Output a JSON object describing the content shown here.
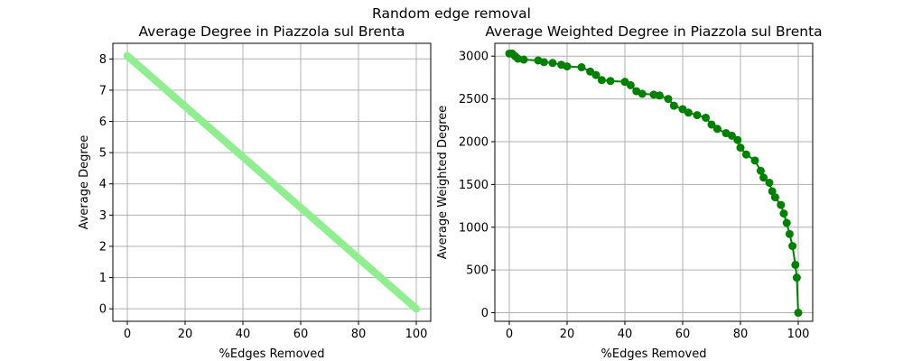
{
  "suptitle": "Random edge removal",
  "chart_data": [
    {
      "type": "scatter",
      "title": "Average Degree in Piazzola sul Brenta",
      "xlabel": "%Edges Removed",
      "ylabel": "Average Degree",
      "xlim": [
        -5,
        105
      ],
      "ylim": [
        -0.4,
        8.5
      ],
      "xticks": [
        0,
        20,
        40,
        60,
        80,
        100
      ],
      "yticks": [
        0,
        1,
        2,
        3,
        4,
        5,
        6,
        7,
        8
      ],
      "xtick_labels": [
        "0",
        "20",
        "40",
        "60",
        "80",
        "100"
      ],
      "ytick_labels": [
        "0",
        "1",
        "2",
        "3",
        "4",
        "5",
        "6",
        "7",
        "8"
      ],
      "grid": true,
      "color": "#90ee90",
      "series": [
        {
          "name": "Average Degree",
          "start": [
            0,
            8.1
          ],
          "end": [
            100,
            0.0
          ],
          "step": 0.5
        }
      ]
    },
    {
      "type": "line",
      "title": "Average Weighted Degree in Piazzola sul Brenta",
      "xlabel": "%Edges Removed",
      "ylabel": "Average Weighted Degree",
      "xlim": [
        -5,
        105
      ],
      "ylim": [
        -100,
        3150
      ],
      "xticks": [
        0,
        20,
        40,
        60,
        80,
        100
      ],
      "yticks": [
        0,
        500,
        1000,
        1500,
        2000,
        2500,
        3000
      ],
      "xtick_labels": [
        "0",
        "20",
        "40",
        "60",
        "80",
        "100"
      ],
      "ytick_labels": [
        "0",
        "500",
        "1000",
        "1500",
        "2000",
        "2500",
        "3000"
      ],
      "grid": true,
      "color": "#008000",
      "series": [
        {
          "name": "Average Weighted Degree",
          "x": [
            0,
            1,
            2,
            3,
            5,
            10,
            12,
            15,
            18,
            20,
            25,
            28,
            30,
            32,
            35,
            40,
            42,
            44,
            46,
            50,
            52,
            55,
            57,
            60,
            62,
            65,
            68,
            70,
            72,
            75,
            77,
            79,
            80,
            82,
            85,
            87,
            88,
            90,
            91,
            92,
            94,
            95,
            96,
            97,
            98,
            99,
            99.5,
            100
          ],
          "y": [
            3030,
            3030,
            3000,
            2970,
            2960,
            2950,
            2930,
            2920,
            2900,
            2880,
            2870,
            2820,
            2780,
            2720,
            2710,
            2700,
            2660,
            2590,
            2560,
            2550,
            2540,
            2500,
            2420,
            2380,
            2340,
            2310,
            2280,
            2200,
            2150,
            2100,
            2070,
            2020,
            1930,
            1850,
            1780,
            1660,
            1580,
            1520,
            1420,
            1350,
            1260,
            1160,
            1050,
            920,
            780,
            560,
            410,
            0
          ]
        }
      ]
    }
  ]
}
